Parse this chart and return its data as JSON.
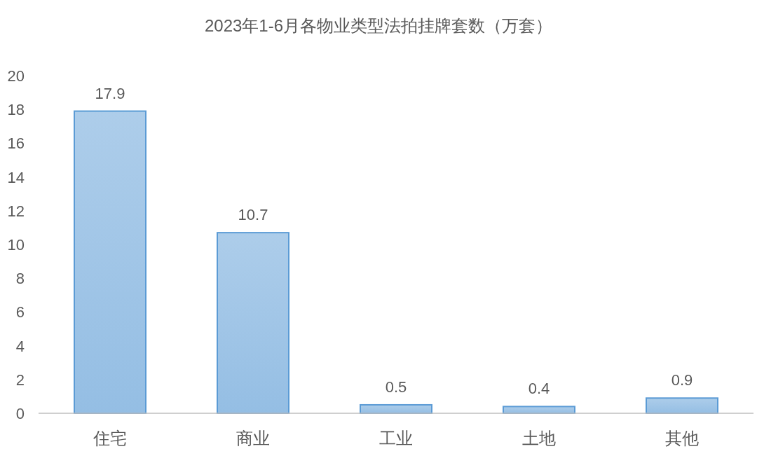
{
  "chart_data": {
    "type": "bar",
    "title": "2023年1-6月各物业类型法拍挂牌套数（万套）",
    "categories": [
      "住宅",
      "商业",
      "工业",
      "土地",
      "其他"
    ],
    "values": [
      17.9,
      10.7,
      0.5,
      0.4,
      0.9
    ],
    "color": "#5b9bd5",
    "ylim": [
      0,
      20
    ],
    "yticks": [
      0,
      2,
      4,
      6,
      8,
      10,
      12,
      14,
      16,
      18,
      20
    ],
    "data_labels": true
  }
}
